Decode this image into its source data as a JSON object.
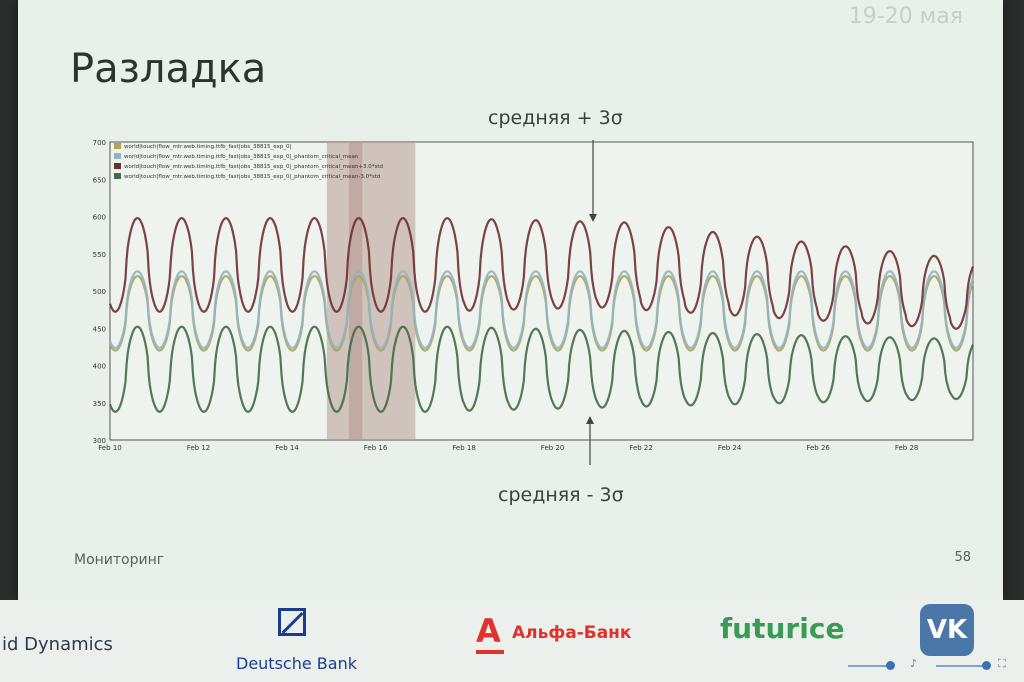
{
  "slide": {
    "date": "19-20 мая",
    "title": "Разладка",
    "annotation_top": "средняя + 3σ",
    "annotation_bottom": "средняя - 3σ",
    "footer_left": "Мониторинг",
    "page_number": "58"
  },
  "sponsors": {
    "grid": "id Dynamics",
    "deutsche": "Deutsche Bank",
    "alfa": "Альфа-Банк",
    "futurice": "futurice",
    "vk": "VK"
  },
  "colors": {
    "mean_plus": "#6e3030",
    "actual": "#b0a458",
    "mean": "#8fb4c6",
    "mean_minus": "#3f6b46",
    "anomaly_band": "#b89a94"
  },
  "chart_data": {
    "type": "line",
    "title": "",
    "xlabel": "",
    "ylabel": "",
    "ylim": [
      300,
      700
    ],
    "yticks": [
      300,
      350,
      400,
      450,
      500,
      550,
      600,
      650,
      700
    ],
    "xticks": [
      "Feb 10",
      "Feb 12",
      "Feb 14",
      "Feb 16",
      "Feb 18",
      "Feb 20",
      "Feb 22",
      "Feb 24",
      "Feb 26",
      "Feb 28"
    ],
    "xrange_days": [
      10,
      29.5
    ],
    "legend_position": "top-left",
    "anomaly_ranges": [
      [
        14.9,
        16.9
      ],
      [
        15.4,
        15.7
      ]
    ],
    "series": [
      {
        "name": "world|touch|flow_mtr.web.timing.ttfb_fast|obs_38815_exp_0|",
        "color_key": "actual",
        "baseline": [
          470,
          470,
          470,
          470,
          470,
          470,
          470,
          470,
          470,
          470,
          470,
          470,
          470,
          470,
          470,
          470,
          470,
          470,
          470,
          470
        ],
        "amplitude": [
          70,
          70,
          70,
          70,
          70,
          70,
          70,
          70,
          70,
          70,
          70,
          70,
          70,
          70,
          70,
          70,
          70,
          70,
          70,
          70
        ]
      },
      {
        "name": "world|touch|flow_mtr.web.timing.ttfb_fast|obs_38815_exp_0|_phantom_critical_mean",
        "color_key": "mean",
        "baseline": [
          475,
          475,
          475,
          475,
          475,
          475,
          475,
          475,
          475,
          475,
          475,
          475,
          475,
          475,
          475,
          475,
          475,
          475,
          475,
          475
        ],
        "amplitude": [
          72,
          72,
          72,
          72,
          72,
          72,
          72,
          72,
          72,
          72,
          72,
          72,
          72,
          72,
          72,
          72,
          72,
          72,
          72,
          72
        ]
      },
      {
        "name": "world|touch|flow_mtr.web.timing.ttfb_fast|obs_38815_exp_0|_phantom_critical_mean+3.0*std",
        "color_key": "mean_plus",
        "baseline": [
          535,
          535,
          535,
          535,
          535,
          535,
          535,
          535,
          535,
          535,
          535,
          535,
          530,
          525,
          520,
          515,
          510,
          505,
          500,
          495
        ],
        "amplitude": [
          88,
          88,
          88,
          88,
          88,
          88,
          88,
          88,
          86,
          84,
          82,
          80,
          78,
          76,
          74,
          72,
          70,
          68,
          66,
          64
        ]
      },
      {
        "name": "world|touch|flow_mtr.web.timing.ttfb_fast|obs_38815_exp_0|_phantom_critical_mean-3.0*std",
        "color_key": "mean_minus",
        "baseline": [
          395,
          395,
          395,
          395,
          395,
          395,
          395,
          395,
          395,
          395,
          395,
          395,
          395,
          395,
          395,
          395,
          395,
          395,
          395,
          395
        ],
        "amplitude": [
          80,
          80,
          80,
          80,
          80,
          80,
          80,
          80,
          78,
          76,
          74,
          72,
          70,
          68,
          66,
          64,
          62,
          60,
          58,
          56
        ]
      }
    ]
  }
}
